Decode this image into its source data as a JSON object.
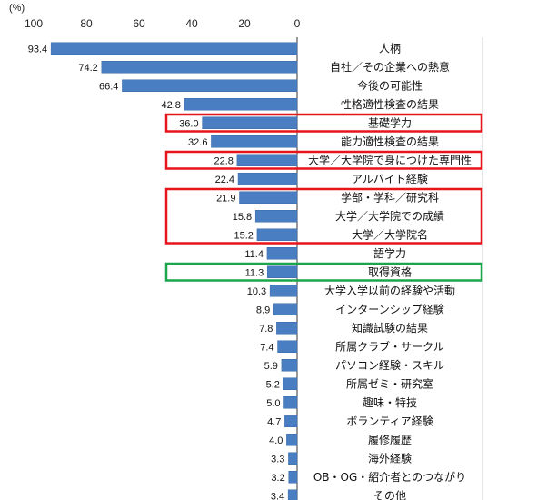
{
  "chart_data": {
    "type": "bar",
    "orientation": "horizontal",
    "direction": "right-to-left",
    "unit": "(%)",
    "xlim": [
      0,
      100
    ],
    "ticks": [
      "100",
      "80",
      "60",
      "40",
      "20",
      "0"
    ],
    "grid": false,
    "categories": [
      "人柄",
      "自社／その企業への熱意",
      "今後の可能性",
      "性格適性検査の結果",
      "基礎学力",
      "能力適性検査の結果",
      "大学／大学院で身につけた専門性",
      "アルバイト経験",
      "学部・学科／研究科",
      "大学／大学院での成績",
      "大学／大学院名",
      "語学力",
      "取得資格",
      "大学入学以前の経験や活動",
      "インターンシップ経験",
      "知識試験の結果",
      "所属クラブ・サークル",
      "パソコン経験・スキル",
      "所属ゼミ・研究室",
      "趣味・特技",
      "ボランティア経験",
      "履修履歴",
      "海外経験",
      "OB・OG・紹介者とのつながり",
      "その他"
    ],
    "values": [
      93.4,
      74.2,
      66.4,
      42.8,
      36.0,
      32.6,
      22.8,
      22.4,
      21.9,
      15.8,
      15.2,
      11.4,
      11.3,
      10.3,
      8.9,
      7.8,
      7.4,
      5.9,
      5.2,
      5.0,
      4.7,
      4.0,
      3.3,
      3.2,
      3.4
    ],
    "value_labels": [
      "93.4",
      "74.2",
      "66.4",
      "42.8",
      "36.0",
      "32.6",
      "22.8",
      "22.4",
      "21.9",
      "15.8",
      "15.2",
      "11.4",
      "11.3",
      "10.3",
      "8.9",
      "7.8",
      "7.4",
      "5.9",
      "5.2",
      "5.0",
      "4.7",
      "4.0",
      "3.3",
      "3.2",
      "3.4"
    ],
    "highlights": [
      {
        "color": "#e8141c",
        "rows": [
          4,
          4
        ]
      },
      {
        "color": "#e8141c",
        "rows": [
          6,
          6
        ]
      },
      {
        "color": "#e8141c",
        "rows": [
          8,
          10
        ]
      },
      {
        "color": "#1aa64a",
        "rows": [
          12,
          12
        ]
      }
    ]
  },
  "colors": {
    "bar": "#4a7ec2",
    "bar_edge": "#3a6aa8",
    "axis": "#333333"
  }
}
